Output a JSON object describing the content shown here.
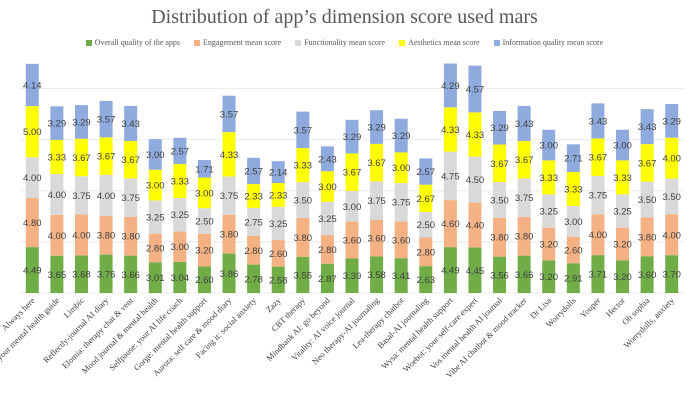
{
  "chart_data": {
    "type": "bar",
    "stacked": true,
    "title": "Distribution of app’s dimension score used mars",
    "xlabel": "",
    "ylabel": "",
    "ylim": [
      0,
      23
    ],
    "grid": true,
    "legend_position": "top",
    "categories": [
      "Always here",
      "Heyy, your mental health guide",
      "Limbic",
      "Reflectly-journal AI diary",
      "Elomia: therapy chat & vent",
      "Mood journal & mental health",
      "Selfpause: your AI life coach",
      "Gorge: mental health support",
      "Aurora: self care & mood diary",
      "Facing it: social anxiety",
      "Zazy",
      "CBT therapy",
      "Mindbank AI: go beyond",
      "Vitality: AI voice journal",
      "Neo therapy-AI journaling",
      "Lea-therapy chatbot",
      "Basal-AI journaling",
      "Wysa: mental health support",
      "Woebot: your self-care expert",
      "Vos mental health AI journal",
      "Vibe AI chatbot & mood tracker",
      "Dr Lisa",
      "Worrydolls",
      "Youper",
      "Hector",
      "Oh sophia",
      "Worrydolls, anxiety"
    ],
    "series": [
      {
        "name": "Overall quality of the apps",
        "color": "#70ad47",
        "values": [
          4.49,
          3.65,
          3.68,
          3.76,
          3.66,
          3.01,
          3.04,
          2.6,
          3.86,
          2.78,
          2.58,
          3.55,
          2.87,
          3.39,
          3.58,
          3.41,
          2.63,
          4.49,
          4.45,
          3.56,
          3.66,
          3.2,
          2.91,
          3.71,
          3.2,
          3.6,
          3.7
        ],
        "labels": [
          "4.49",
          "3.65",
          "3.68",
          "3.76",
          "3.66",
          "3.01",
          "3.04",
          "2.60",
          "3.86",
          "2.78",
          "2.58",
          "3.55",
          "2.87",
          "3.39",
          "3.58",
          "3.41",
          "2.63",
          "4.49",
          "4.45",
          "3.56",
          "3.66",
          "3.20",
          "2.91",
          "3.71",
          "3.20",
          "3.60",
          "3.70"
        ]
      },
      {
        "name": "Engagement mean score",
        "color": "#f4b183",
        "values": [
          4.8,
          4.0,
          4.0,
          3.8,
          3.8,
          2.8,
          3.0,
          3.2,
          3.8,
          2.8,
          2.6,
          3.8,
          2.8,
          3.6,
          3.6,
          3.6,
          2.8,
          4.6,
          4.4,
          3.8,
          3.8,
          3.2,
          2.6,
          4.0,
          3.2,
          3.8,
          4.0
        ],
        "labels": [
          "4.80",
          "4.00",
          "4.00",
          "3.80",
          "3.80",
          "2.80",
          "3.00",
          "3.20",
          "3.80",
          "2.80",
          "2.60",
          "3.80",
          "2.80",
          "3.60",
          "3.60",
          "3.60",
          "2.80",
          "4.60",
          "4.40",
          "3.80",
          "3.80",
          "3.20",
          "2.60",
          "4.00",
          "3.20",
          "3.80",
          "4.00"
        ]
      },
      {
        "name": "Functionality mean score",
        "color": "#d9d9d9",
        "values": [
          4.0,
          4.0,
          3.75,
          4.0,
          3.75,
          3.25,
          3.25,
          2.5,
          3.75,
          2.75,
          3.25,
          3.5,
          3.25,
          3.0,
          3.75,
          3.75,
          2.5,
          4.75,
          4.5,
          3.5,
          3.75,
          3.25,
          3.0,
          3.75,
          3.25,
          3.5,
          3.5
        ],
        "labels": [
          "4.00",
          "4.00",
          "3.75",
          "4.00",
          "3.75",
          "3.25",
          "3.25",
          "2.50",
          "3.75",
          "2.75",
          "3.25",
          "3.50",
          "3.25",
          "3.00",
          "3.75",
          "3.75",
          "2.50",
          "4.75",
          "4.50",
          "3.50",
          "3.75",
          "3.25",
          "3.00",
          "3.75",
          "3.25",
          "3.50",
          "3.50"
        ]
      },
      {
        "name": "Aesthetics mean score",
        "color": "#ffff00",
        "values": [
          5.0,
          3.33,
          3.67,
          3.67,
          3.67,
          3.0,
          3.33,
          3.0,
          4.33,
          2.33,
          2.33,
          3.33,
          3.0,
          3.67,
          3.67,
          3.0,
          2.67,
          4.33,
          4.33,
          3.67,
          3.67,
          3.33,
          3.33,
          3.67,
          3.33,
          3.67,
          4.0
        ],
        "labels": [
          "5.00",
          "3.33",
          "3.67",
          "3.67",
          "3.67",
          "3.00",
          "3.33",
          "3.00",
          "4.33",
          "2.33",
          "2.33",
          "3.33",
          "3.00",
          "3.67",
          "3.67",
          "3.00",
          "2.67",
          "4.33",
          "4.33",
          "3.67",
          "3.67",
          "3.33",
          "3.33",
          "3.67",
          "3.33",
          "3.67",
          "4.00"
        ]
      },
      {
        "name": "Information quality mean score",
        "color": "#8faadc",
        "values": [
          4.14,
          3.29,
          3.29,
          3.57,
          3.43,
          3.0,
          2.57,
          1.71,
          3.57,
          2.57,
          2.14,
          3.57,
          2.43,
          3.29,
          3.29,
          3.29,
          2.57,
          4.29,
          4.57,
          3.29,
          3.43,
          3.0,
          2.71,
          3.43,
          3.0,
          3.43,
          3.29
        ],
        "labels": [
          "4.14",
          "3.29",
          "3.29",
          "3.57",
          "3.43",
          "3.00",
          "2.57",
          "1.71",
          "3.57",
          "2.57",
          "2.14",
          "3.57",
          "2.43",
          "3.29",
          "3.29",
          "3.29",
          "2.57",
          "4.29",
          "4.57",
          "3.29",
          "3.43",
          "3.00",
          "2.71",
          "3.43",
          "3.00",
          "3.43",
          "3.29"
        ]
      }
    ]
  }
}
